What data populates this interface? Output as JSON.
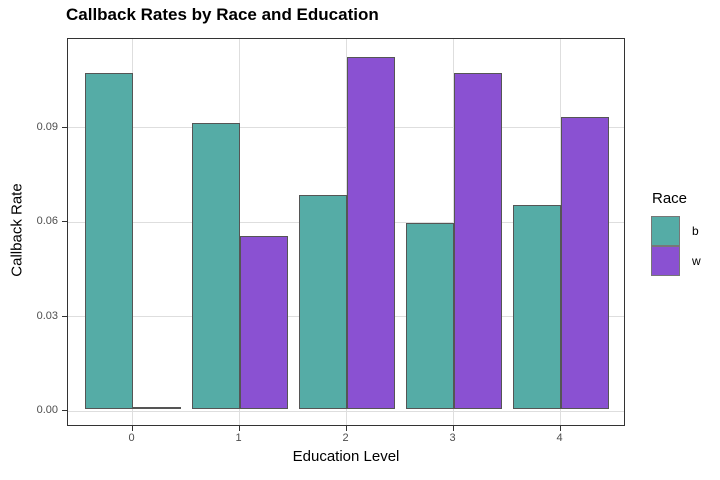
{
  "title": "Callback Rates by Race and Education",
  "chart_data": {
    "type": "bar",
    "grouped": true,
    "title": "Callback Rates by Race and Education",
    "xlabel": "Education Level",
    "ylabel": "Callback Rate",
    "categories": [
      "0",
      "1",
      "2",
      "3",
      "4"
    ],
    "series": [
      {
        "name": "b",
        "color": "#55ACA6",
        "values": [
          0.107,
          0.091,
          0.068,
          0.059,
          0.065
        ]
      },
      {
        "name": "w",
        "color": "#8A51D2",
        "values": [
          0.0,
          0.055,
          0.112,
          0.107,
          0.093
        ]
      }
    ],
    "y_ticks": [
      "0.00",
      "0.03",
      "0.06",
      "0.09"
    ],
    "y_tick_values": [
      0,
      0.03,
      0.06,
      0.09
    ],
    "ylim": [
      0,
      0.1183
    ],
    "grid": "major",
    "legend": {
      "title": "Race",
      "position": "right",
      "entries": [
        "b",
        "w"
      ]
    }
  },
  "colors": {
    "bar_b": "#55ACA6",
    "bar_w": "#8A51D2",
    "gridline": "#DEDEDE",
    "panel_border": "#333333",
    "axis_text": "#4D4D4D",
    "bar_outline": "#555555"
  }
}
